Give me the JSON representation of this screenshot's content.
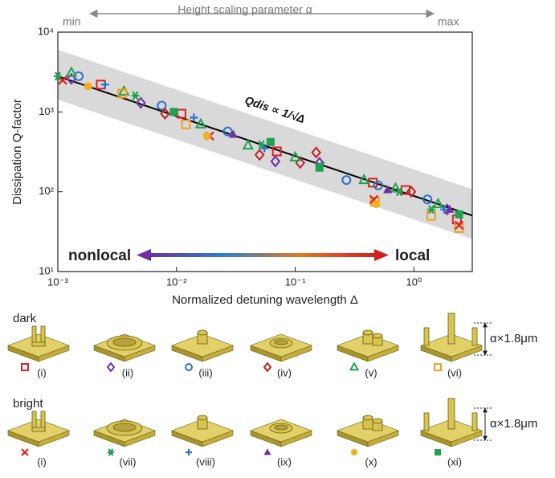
{
  "chart_data": {
    "type": "scatter",
    "xlabel": "Normalized detuning wavelength Δ",
    "ylabel": "Dissipation Q-factor",
    "xlim": [
      0.001,
      3.1
    ],
    "ylim": [
      10,
      10000
    ],
    "xscale": "log",
    "yscale": "log",
    "xticks": [
      {
        "value": 0.001,
        "label": "10⁻³"
      },
      {
        "value": 0.01,
        "label": "10⁻²"
      },
      {
        "value": 0.1,
        "label": "10⁻¹"
      },
      {
        "value": 1,
        "label": "10⁰"
      }
    ],
    "yticks": [
      {
        "value": 10,
        "label": "10¹"
      },
      {
        "value": 100,
        "label": "10²"
      },
      {
        "value": 1000,
        "label": "10³"
      },
      {
        "value": 10000,
        "label": "10⁴"
      }
    ],
    "top_axis": {
      "min": "min",
      "max": "max",
      "label": "Height scaling parameter α"
    },
    "gradient": {
      "left": "nonlocal",
      "right": "local",
      "colors": [
        "#6b2fa3",
        "#2e7fd0",
        "#e07a20",
        "#d42020"
      ]
    },
    "fit": {
      "label": "Qdis ∝ 1/√Δ",
      "coefficient": 88.5,
      "exponent": -0.5,
      "band_upper": 190,
      "band_lower": 45,
      "color": "#000000",
      "band_color": "#d9d9d9"
    },
    "groups": [
      {
        "name": "dark",
        "height_label": "α×1.8μm"
      },
      {
        "name": "bright",
        "height_label": "α×1.8μm"
      }
    ],
    "series": [
      {
        "name": "(i)",
        "group": 0,
        "marker": "square-open",
        "color": "#e02020",
        "x": [
          0.0023,
          0.011,
          0.07,
          0.45,
          0.85,
          2.3
        ],
        "values": [
          2200,
          950,
          320,
          130,
          105,
          45
        ]
      },
      {
        "name": "(ii)",
        "group": 0,
        "marker": "diamond-open",
        "color": "#7030a0",
        "x": [
          0.0013,
          0.005,
          0.068,
          0.16,
          1.9
        ],
        "values": [
          2600,
          1300,
          240,
          230,
          60
        ]
      },
      {
        "name": "(iii)",
        "group": 0,
        "marker": "circle-open",
        "color": "#2a70c8",
        "x": [
          0.0015,
          0.0075,
          0.027,
          0.27,
          0.5,
          1.3
        ],
        "values": [
          2800,
          1200,
          570,
          140,
          120,
          80
        ]
      },
      {
        "name": "(iv)",
        "group": 0,
        "marker": "diamond-open",
        "color": "#c02020",
        "x": [
          0.008,
          0.05,
          0.15,
          0.11,
          0.95
        ],
        "values": [
          950,
          290,
          310,
          230,
          100
        ]
      },
      {
        "name": "(v)",
        "group": 0,
        "marker": "triangle-open",
        "color": "#20a050",
        "x": [
          0.0013,
          0.0036,
          0.016,
          0.04,
          0.1,
          0.38,
          0.7,
          1.6
        ],
        "values": [
          3100,
          1800,
          700,
          380,
          270,
          140,
          110,
          70
        ]
      },
      {
        "name": "(vi)",
        "group": 0,
        "marker": "square-open",
        "color": "#f0a020",
        "x": [
          0.0035,
          0.012,
          0.47,
          1.4,
          2.4
        ],
        "values": [
          1700,
          700,
          75,
          50,
          35
        ]
      },
      {
        "name": "(i)",
        "group": 1,
        "marker": "cross",
        "color": "#e02020",
        "x": [
          0.0011,
          0.019,
          0.46,
          2.4
        ],
        "values": [
          2500,
          500,
          80,
          38
        ]
      },
      {
        "name": "(vii)",
        "group": 1,
        "marker": "asterisk",
        "color": "#20a050",
        "x": [
          0.001,
          0.0045,
          0.052,
          0.16,
          0.75,
          1.4
        ],
        "values": [
          2800,
          1600,
          390,
          210,
          100,
          60
        ]
      },
      {
        "name": "(viii)",
        "group": 1,
        "marker": "plus",
        "color": "#2a70c8",
        "x": [
          0.0025,
          0.014,
          0.055,
          1.8
        ],
        "values": [
          2200,
          850,
          350,
          60
        ]
      },
      {
        "name": "(ix)",
        "group": 1,
        "marker": "triangle",
        "color": "#7030a0",
        "x": [
          0.03,
          0.6,
          2.0
        ],
        "values": [
          520,
          105,
          60
        ]
      },
      {
        "name": "(x)",
        "group": 1,
        "marker": "circle",
        "color": "#f0b020",
        "x": [
          0.0018,
          0.018,
          0.48
        ],
        "values": [
          2100,
          500,
          70
        ]
      },
      {
        "name": "(xi)",
        "group": 1,
        "marker": "square",
        "color": "#20a050",
        "x": [
          0.0095,
          0.062,
          0.16,
          2.4
        ],
        "values": [
          1000,
          420,
          200,
          52
        ]
      }
    ]
  }
}
